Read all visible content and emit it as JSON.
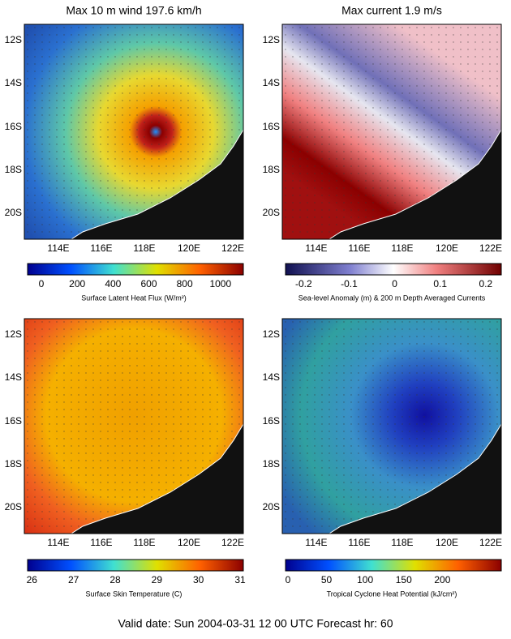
{
  "panels": [
    {
      "title": "Max 10 m wind 197.6 km/h",
      "lat_labels": [
        "12S",
        "14S",
        "16S",
        "18S",
        "20S"
      ],
      "lon_labels": [
        "114E",
        "116E",
        "118E",
        "120E",
        "122E"
      ],
      "colorbar_ticks": [
        "0",
        "200",
        "400",
        "600",
        "800",
        "1000"
      ],
      "colorbar_label": "Surface Latent Heat Flux (W/m²)"
    },
    {
      "title": "Max current 1.9 m/s",
      "lat_labels": [
        "12S",
        "14S",
        "16S",
        "18S",
        "20S"
      ],
      "lon_labels": [
        "114E",
        "116E",
        "118E",
        "120E",
        "122E"
      ],
      "colorbar_ticks": [
        "-0.2",
        "-0.1",
        "0",
        "0.1",
        "0.2"
      ],
      "colorbar_label": "Sea-level Anomaly (m) & 200 m Depth Averaged Currents"
    },
    {
      "lat_labels": [
        "12S",
        "14S",
        "16S",
        "18S",
        "20S"
      ],
      "lon_labels": [
        "114E",
        "116E",
        "118E",
        "120E",
        "122E"
      ],
      "colorbar_ticks": [
        "26",
        "27",
        "28",
        "29",
        "30",
        "31"
      ],
      "colorbar_label": "Surface Skin Temperature (C)"
    },
    {
      "lat_labels": [
        "12S",
        "14S",
        "16S",
        "18S",
        "20S"
      ],
      "lon_labels": [
        "114E",
        "116E",
        "118E",
        "120E",
        "122E"
      ],
      "colorbar_ticks": [
        "0",
        "50",
        "100",
        "150",
        "200"
      ],
      "colorbar_label": "Tropical Cyclone Heat Potential (kJ/cm²)"
    }
  ],
  "footer": "Valid date: Sun 2004-03-31 12 00  UTC Forecast hr: 60"
}
